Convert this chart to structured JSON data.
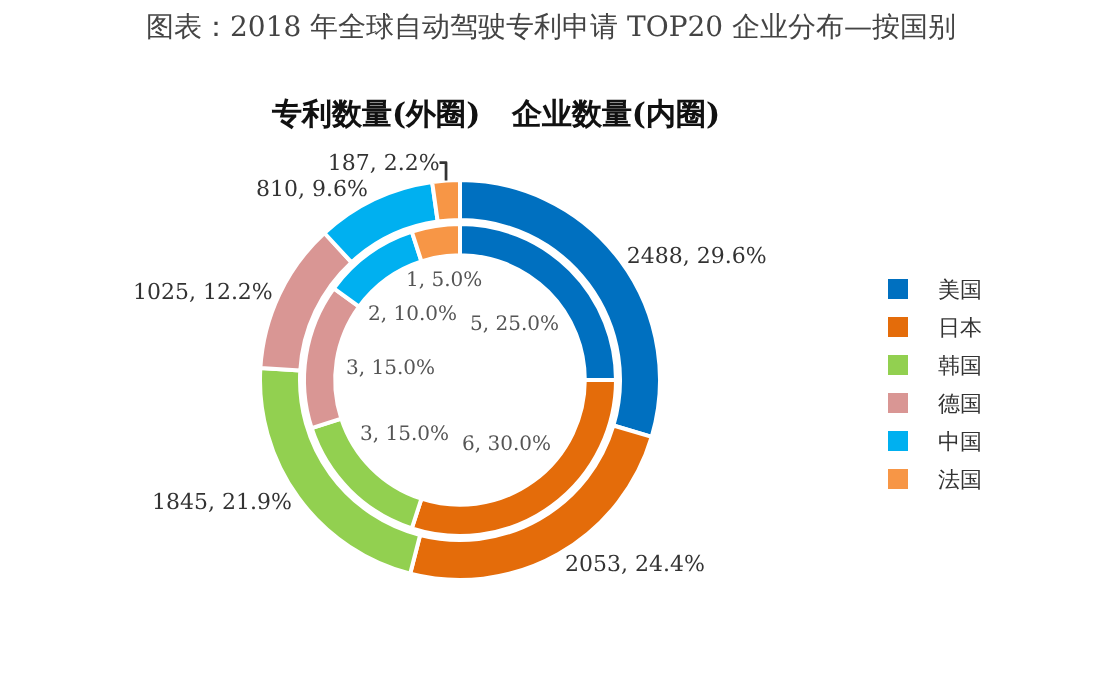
{
  "chart_data": {
    "type": "donut",
    "title": "图表：2018 年全球自动驾驶专利申请 TOP20 企业分布—按国别",
    "subtitle": "专利数量(外圈)   企业数量(内圈)",
    "categories": [
      "美国",
      "日本",
      "韩国",
      "德国",
      "中国",
      "法国"
    ],
    "colors": [
      "#0070c0",
      "#e46c0a",
      "#92d050",
      "#d99694",
      "#00b0f0",
      "#f79646"
    ],
    "series": [
      {
        "values": [
          2488,
          2053,
          1845,
          1025,
          810,
          187
        ],
        "value_labels": [
          "2488, 29.6%",
          "2053, 24.4%",
          "1845, 21.9%",
          "1025, 12.2%",
          "810, 9.6%",
          "187, 2.2%"
        ]
      },
      {
        "values": [
          5,
          6,
          3,
          3,
          2,
          1
        ],
        "value_labels": [
          "5, 25.0%",
          "6, 30.0%",
          "3, 15.0%",
          "3, 15.0%",
          "2, 10.0%",
          "1, 5.0%"
        ]
      }
    ],
    "legend": "right"
  }
}
